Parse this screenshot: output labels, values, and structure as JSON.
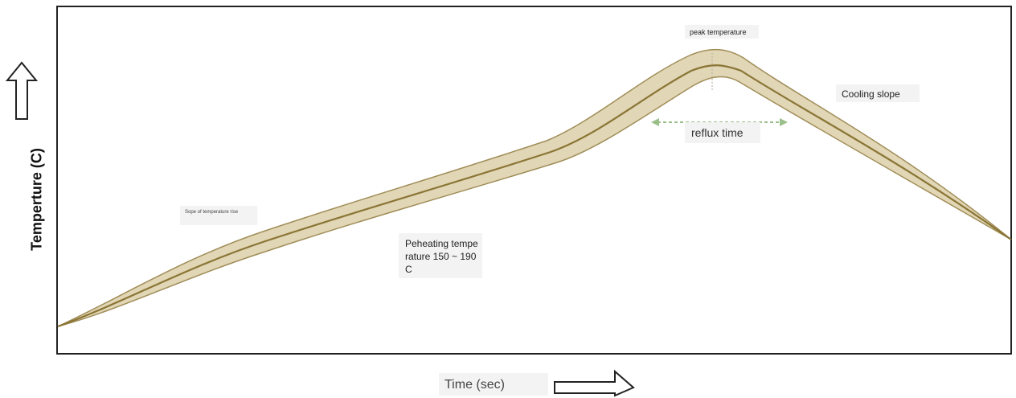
{
  "y_axis_label": "Temperture (C)",
  "x_axis_label": "Time (sec)",
  "annotations": {
    "peak": "peak temperature",
    "cooling": "Cooling slope",
    "reflux": "reflux time",
    "rise": "Sope of temperature rise",
    "preheat_lines": [
      "Peheating tempe",
      "rature 150 ~ 190",
      "C"
    ]
  },
  "colors": {
    "band_fill": "#dccfa8",
    "band_edge": "#a08d58",
    "center_line": "#8a7535",
    "frame": "#222222",
    "reflux_arrow": "#9bbf8a"
  },
  "icons": {
    "y_arrow": "up-arrow-outline-icon",
    "x_arrow": "right-arrow-outline-icon"
  }
}
